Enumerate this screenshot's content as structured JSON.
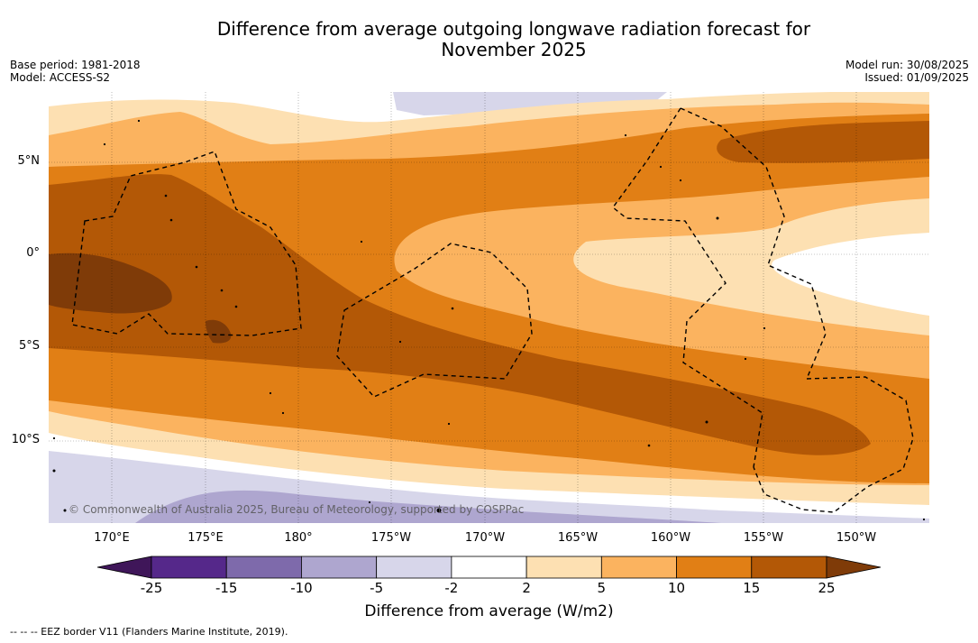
{
  "title_line1": "Difference from average outgoing longwave radiation forecast for",
  "title_line2": "November 2025",
  "meta_left": [
    "Base period: 1981-2018",
    "Model: ACCESS-S2"
  ],
  "meta_right": [
    "Model run: 30/08/2025",
    "Issued: 01/09/2025"
  ],
  "lat_labels": [
    "5°N",
    "0°",
    "5°S",
    "10°S"
  ],
  "lon_labels": [
    "170°E",
    "175°E",
    "180°",
    "175°W",
    "170°W",
    "165°W",
    "160°W",
    "155°W",
    "150°W"
  ],
  "credit": "© Commonwealth of Australia 2025, Bureau of Meteorology, supported by COSPPac",
  "colorbar": {
    "ticks": [
      "-25",
      "-15",
      "-10",
      "-5",
      "-2",
      "2",
      "5",
      "10",
      "15",
      "25"
    ],
    "colors": [
      "#3f1659",
      "#55288a",
      "#7e6aab",
      "#aea6cf",
      "#d7d6ea",
      "#ffffff",
      "#fde0b2",
      "#fbb35f",
      "#e17f15",
      "#b35806",
      "#7f3b08"
    ],
    "label": "Difference from average (W/m2)"
  },
  "legend_note": "-- -- -- EEZ border V11 (Flanders Marine Institute, 2019)."
}
